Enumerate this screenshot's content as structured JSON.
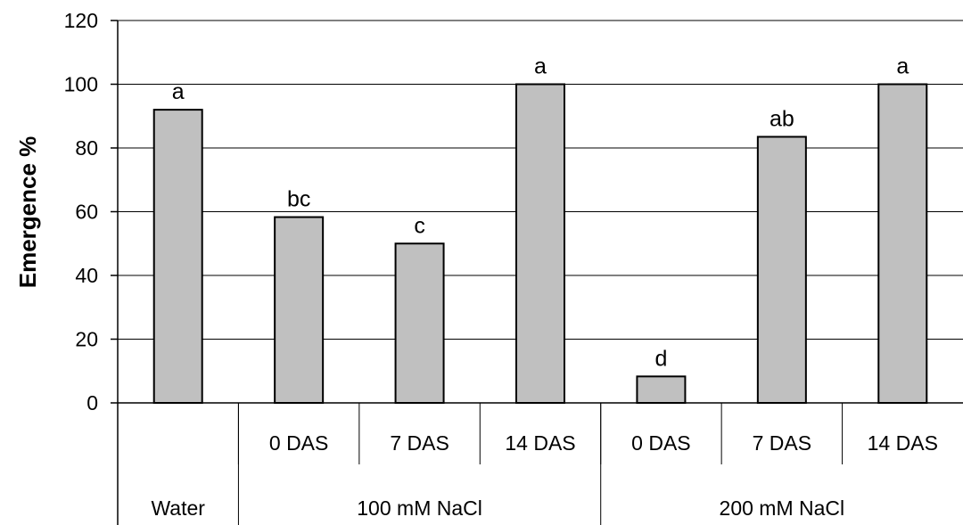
{
  "chart_data": {
    "type": "bar",
    "title": "",
    "xlabel": "",
    "ylabel": "Emergence %",
    "ylim": [
      0,
      120
    ],
    "yticks": [
      0,
      20,
      40,
      60,
      80,
      100,
      120
    ],
    "grid": true,
    "bar_color": "#c0c0c0",
    "categories": [
      "",
      "0 DAS",
      "7 DAS",
      "14 DAS",
      "0 DAS",
      "7 DAS",
      "14 DAS"
    ],
    "groups": [
      "Water",
      "100 mM NaCl",
      "200 mM NaCl"
    ],
    "group_sizes": [
      1,
      3,
      3
    ],
    "values": [
      92,
      58.3,
      50,
      100,
      8.3,
      83.5,
      100
    ],
    "significance_labels": [
      "a",
      "bc",
      "c",
      "a",
      "d",
      "ab",
      "a"
    ]
  }
}
